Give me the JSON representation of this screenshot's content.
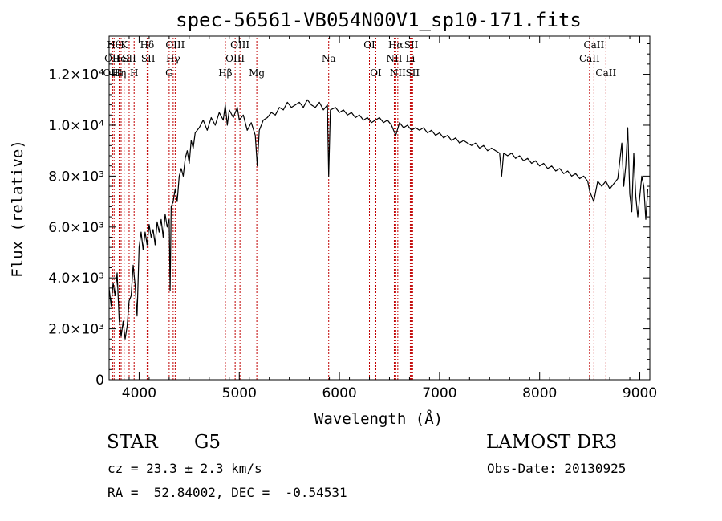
{
  "chart_data": {
    "type": "line",
    "title": "spec-56561-VB054N00V1_sp10-171.fits",
    "xlabel": "Wavelength (Å)",
    "ylabel": "Flux (relative)",
    "xlim": [
      3700,
      9100
    ],
    "ylim": [
      0,
      13500
    ],
    "grid": false,
    "legend": "none",
    "x_ticks": [
      4000,
      5000,
      6000,
      7000,
      8000,
      9000
    ],
    "y_ticks": [
      {
        "value": 0,
        "label": "0"
      },
      {
        "value": 2000,
        "label": "2.0×10³"
      },
      {
        "value": 4000,
        "label": "4.0×10³"
      },
      {
        "value": 6000,
        "label": "6.0×10³"
      },
      {
        "value": 8000,
        "label": "8.0×10³"
      },
      {
        "value": 10000,
        "label": "1.0×10⁴"
      },
      {
        "value": 12000,
        "label": "1.2×10⁴"
      }
    ],
    "series": [
      {
        "color": "#000000",
        "points": [
          [
            3700,
            3600
          ],
          [
            3720,
            2900
          ],
          [
            3740,
            3800
          ],
          [
            3760,
            3300
          ],
          [
            3780,
            4200
          ],
          [
            3800,
            2400
          ],
          [
            3820,
            1700
          ],
          [
            3840,
            2300
          ],
          [
            3860,
            1600
          ],
          [
            3880,
            2100
          ],
          [
            3900,
            3100
          ],
          [
            3920,
            3300
          ],
          [
            3940,
            4500
          ],
          [
            3960,
            3700
          ],
          [
            3980,
            2500
          ],
          [
            4000,
            5200
          ],
          [
            4020,
            5800
          ],
          [
            4040,
            5100
          ],
          [
            4060,
            5800
          ],
          [
            4080,
            5300
          ],
          [
            4100,
            6100
          ],
          [
            4120,
            5600
          ],
          [
            4140,
            5900
          ],
          [
            4160,
            5300
          ],
          [
            4180,
            6200
          ],
          [
            4200,
            5800
          ],
          [
            4220,
            6300
          ],
          [
            4240,
            5600
          ],
          [
            4260,
            6500
          ],
          [
            4280,
            6000
          ],
          [
            4300,
            6300
          ],
          [
            4310,
            3500
          ],
          [
            4320,
            6800
          ],
          [
            4340,
            7000
          ],
          [
            4360,
            7500
          ],
          [
            4380,
            7000
          ],
          [
            4400,
            8000
          ],
          [
            4420,
            8300
          ],
          [
            4440,
            8000
          ],
          [
            4460,
            8700
          ],
          [
            4480,
            9000
          ],
          [
            4500,
            8500
          ],
          [
            4520,
            9400
          ],
          [
            4540,
            9100
          ],
          [
            4560,
            9700
          ],
          [
            4600,
            9900
          ],
          [
            4640,
            10200
          ],
          [
            4680,
            9800
          ],
          [
            4720,
            10300
          ],
          [
            4760,
            10000
          ],
          [
            4800,
            10500
          ],
          [
            4840,
            10200
          ],
          [
            4860,
            10800
          ],
          [
            4880,
            10000
          ],
          [
            4900,
            10600
          ],
          [
            4940,
            10300
          ],
          [
            4980,
            10700
          ],
          [
            5000,
            10200
          ],
          [
            5040,
            10400
          ],
          [
            5080,
            9800
          ],
          [
            5120,
            10100
          ],
          [
            5160,
            9600
          ],
          [
            5180,
            8400
          ],
          [
            5200,
            9800
          ],
          [
            5240,
            10200
          ],
          [
            5280,
            10300
          ],
          [
            5320,
            10500
          ],
          [
            5360,
            10400
          ],
          [
            5400,
            10700
          ],
          [
            5440,
            10600
          ],
          [
            5480,
            10900
          ],
          [
            5520,
            10700
          ],
          [
            5560,
            10800
          ],
          [
            5600,
            10900
          ],
          [
            5640,
            10700
          ],
          [
            5680,
            11000
          ],
          [
            5720,
            10800
          ],
          [
            5760,
            10700
          ],
          [
            5800,
            10900
          ],
          [
            5840,
            10600
          ],
          [
            5880,
            10800
          ],
          [
            5893,
            8000
          ],
          [
            5910,
            10600
          ],
          [
            5960,
            10700
          ],
          [
            6000,
            10500
          ],
          [
            6040,
            10600
          ],
          [
            6080,
            10400
          ],
          [
            6120,
            10500
          ],
          [
            6160,
            10300
          ],
          [
            6200,
            10400
          ],
          [
            6240,
            10200
          ],
          [
            6280,
            10300
          ],
          [
            6320,
            10100
          ],
          [
            6360,
            10200
          ],
          [
            6400,
            10300
          ],
          [
            6440,
            10100
          ],
          [
            6480,
            10200
          ],
          [
            6520,
            10000
          ],
          [
            6563,
            9600
          ],
          [
            6600,
            10100
          ],
          [
            6640,
            9900
          ],
          [
            6680,
            10000
          ],
          [
            6720,
            9800
          ],
          [
            6760,
            9900
          ],
          [
            6800,
            9800
          ],
          [
            6840,
            9900
          ],
          [
            6880,
            9700
          ],
          [
            6920,
            9800
          ],
          [
            6960,
            9600
          ],
          [
            7000,
            9700
          ],
          [
            7040,
            9500
          ],
          [
            7080,
            9600
          ],
          [
            7120,
            9400
          ],
          [
            7160,
            9500
          ],
          [
            7200,
            9300
          ],
          [
            7240,
            9400
          ],
          [
            7280,
            9300
          ],
          [
            7320,
            9200
          ],
          [
            7360,
            9300
          ],
          [
            7400,
            9100
          ],
          [
            7440,
            9200
          ],
          [
            7480,
            9000
          ],
          [
            7520,
            9100
          ],
          [
            7560,
            9000
          ],
          [
            7600,
            8900
          ],
          [
            7620,
            8000
          ],
          [
            7640,
            8900
          ],
          [
            7680,
            8800
          ],
          [
            7720,
            8900
          ],
          [
            7760,
            8700
          ],
          [
            7800,
            8800
          ],
          [
            7840,
            8600
          ],
          [
            7880,
            8700
          ],
          [
            7920,
            8500
          ],
          [
            7960,
            8600
          ],
          [
            8000,
            8400
          ],
          [
            8040,
            8500
          ],
          [
            8080,
            8300
          ],
          [
            8120,
            8400
          ],
          [
            8160,
            8200
          ],
          [
            8200,
            8300
          ],
          [
            8240,
            8100
          ],
          [
            8280,
            8200
          ],
          [
            8320,
            8000
          ],
          [
            8360,
            8100
          ],
          [
            8400,
            7900
          ],
          [
            8440,
            8000
          ],
          [
            8480,
            7800
          ],
          [
            8500,
            7400
          ],
          [
            8540,
            7000
          ],
          [
            8580,
            7800
          ],
          [
            8620,
            7600
          ],
          [
            8660,
            7800
          ],
          [
            8700,
            7500
          ],
          [
            8740,
            7700
          ],
          [
            8780,
            7900
          ],
          [
            8800,
            8600
          ],
          [
            8820,
            9300
          ],
          [
            8840,
            7600
          ],
          [
            8860,
            8400
          ],
          [
            8880,
            9900
          ],
          [
            8900,
            7300
          ],
          [
            8920,
            6600
          ],
          [
            8940,
            8900
          ],
          [
            8960,
            7200
          ],
          [
            8980,
            6400
          ],
          [
            9000,
            7200
          ],
          [
            9020,
            8000
          ],
          [
            9040,
            7600
          ],
          [
            9060,
            6300
          ],
          [
            9080,
            7500
          ]
        ]
      }
    ],
    "lines": [
      {
        "x": 3750,
        "label": "Hθ",
        "row": 0
      },
      {
        "x": 3730,
        "label": "OII",
        "row": 1
      },
      {
        "x": 3735,
        "label": "OIII",
        "row": 2
      },
      {
        "x": 3800,
        "label": "Hη",
        "row": 2
      },
      {
        "x": 3820,
        "label": "HeI",
        "row": 1
      },
      {
        "x": 3850,
        "label": "K",
        "row": 0
      },
      {
        "x": 3900,
        "label": "SII",
        "row": 1
      },
      {
        "x": 3950,
        "label": "H",
        "row": 2
      },
      {
        "x": 4080,
        "label": "Hδ",
        "row": 0
      },
      {
        "x": 4090,
        "label": "SII",
        "row": 1
      },
      {
        "x": 4300,
        "label": "G",
        "row": 2
      },
      {
        "x": 4340,
        "label": "Hγ",
        "row": 1
      },
      {
        "x": 4360,
        "label": "OIII",
        "row": 0
      },
      {
        "x": 4861,
        "label": "Hβ",
        "row": 2
      },
      {
        "x": 4959,
        "label": "OIII",
        "row": 1
      },
      {
        "x": 5007,
        "label": "OIII",
        "row": 0
      },
      {
        "x": 5175,
        "label": "Mg",
        "row": 2
      },
      {
        "x": 5893,
        "label": "Na",
        "row": 1
      },
      {
        "x": 6300,
        "label": "OI",
        "row": 0
      },
      {
        "x": 6364,
        "label": "OI",
        "row": 2
      },
      {
        "x": 6548,
        "label": "NII",
        "row": 1
      },
      {
        "x": 6563,
        "label": "Hα",
        "row": 0
      },
      {
        "x": 6583,
        "label": "NII",
        "row": 2
      },
      {
        "x": 6708,
        "label": "Li",
        "row": 1
      },
      {
        "x": 6717,
        "label": "SII",
        "row": 0
      },
      {
        "x": 6731,
        "label": "SII",
        "row": 2
      },
      {
        "x": 8498,
        "label": "CaII",
        "row": 1
      },
      {
        "x": 8542,
        "label": "CaII",
        "row": 0
      },
      {
        "x": 8662,
        "label": "CaII",
        "row": 2
      }
    ],
    "line_color": "#c00000"
  },
  "info": {
    "object_class": "STAR",
    "subclass": "G5",
    "survey": "LAMOST DR3",
    "redshift": "cz = 23.3 ± 2.3 km/s",
    "obs_date": "Obs-Date: 20130925",
    "coords": "RA =  52.84002, DEC =  -0.54531"
  }
}
